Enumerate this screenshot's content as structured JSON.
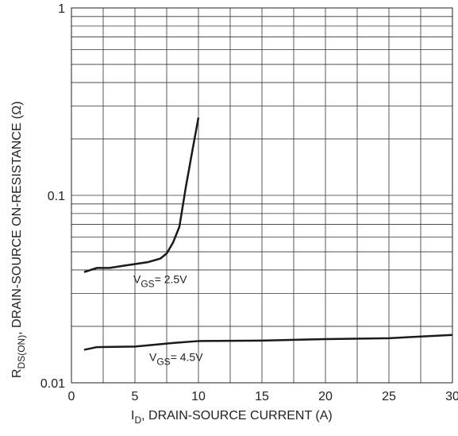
{
  "chart_data": {
    "type": "line",
    "x_label": [
      "I",
      "D",
      ", DRAIN-SOURCE CURRENT (A)"
    ],
    "y_label": [
      "R",
      "DS(ON)",
      ", DRAIN-SOURCE ON-RESISTANCE (Ω)"
    ],
    "log_y": true,
    "xlim": [
      0,
      30
    ],
    "xticks": [
      0,
      5,
      10,
      15,
      20,
      25,
      30
    ],
    "x_minor_grid": [
      2.5,
      7.5,
      12.5,
      17.5,
      22.5,
      27.5
    ],
    "ylim": [
      0.01,
      1
    ],
    "yticks": [
      0.01,
      0.1,
      1
    ],
    "y_minor_grid": [
      0.02,
      0.03,
      0.04,
      0.05,
      0.06,
      0.07,
      0.08,
      0.09,
      0.2,
      0.3,
      0.4,
      0.5,
      0.6,
      0.7,
      0.8,
      0.9
    ],
    "grid": true,
    "series": [
      {
        "color": "#1a1a1a",
        "x": [
          1,
          2,
          3,
          4,
          5,
          6,
          7,
          7.5,
          8,
          8.5,
          9,
          9.5,
          10
        ],
        "values": [
          0.039,
          0.041,
          0.041,
          0.042,
          0.043,
          0.044,
          0.046,
          0.049,
          0.056,
          0.068,
          0.11,
          0.17,
          0.26
        ],
        "annotation": [
          "V",
          "GS",
          "= 2.5V"
        ]
      },
      {
        "color": "#1a1a1a",
        "x": [
          1,
          2,
          5,
          8,
          10,
          15,
          20,
          25,
          30
        ],
        "values": [
          0.015,
          0.0155,
          0.0156,
          0.0163,
          0.0167,
          0.0168,
          0.0171,
          0.0173,
          0.018
        ],
        "annotation": [
          "V",
          "GS",
          "= 4.5V"
        ]
      }
    ]
  }
}
